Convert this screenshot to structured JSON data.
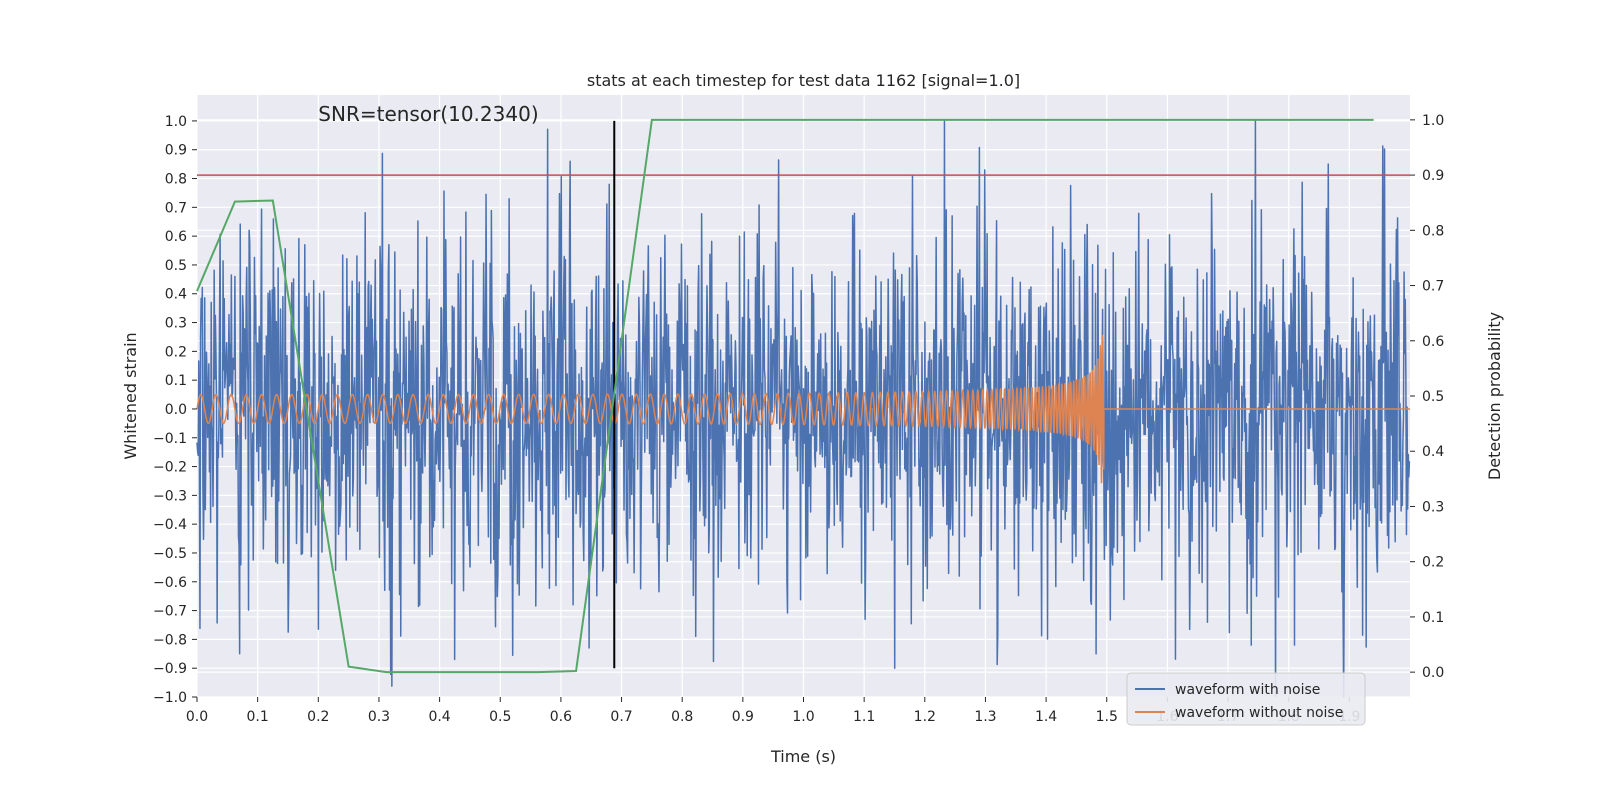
{
  "chart_data": {
    "type": "line",
    "title": "stats at each timestep for test data 1162 [signal=1.0]",
    "annotation": "SNR=tensor(10.2340)",
    "xlabel": "Time (s)",
    "ylabel": "Whitened strain",
    "y2label": "Detection probability",
    "xlim": [
      0.0,
      2.0
    ],
    "ylim": [
      -1.0,
      1.09
    ],
    "y2lim": [
      -0.045,
      1.045
    ],
    "x_ticks": [
      0.0,
      0.1,
      0.2,
      0.3,
      0.4,
      0.5,
      0.6,
      0.7,
      0.8,
      0.9,
      1.0,
      1.1,
      1.2,
      1.3,
      1.4,
      1.5,
      1.6,
      1.7,
      1.8,
      1.9
    ],
    "x_tick_labels": [
      "0.0",
      "0.1",
      "0.2",
      "0.3",
      "0.4",
      "0.5",
      "0.6",
      "0.7",
      "0.8",
      "0.9",
      "1.0",
      "1.1",
      "1.2",
      "1.3",
      "1.4",
      "1.5",
      "1.6",
      "1.7",
      "1.8",
      "1.9"
    ],
    "y_ticks": [
      -1.0,
      -0.9,
      -0.8,
      -0.7,
      -0.6,
      -0.5,
      -0.4,
      -0.3,
      -0.2,
      -0.1,
      0.0,
      0.1,
      0.2,
      0.3,
      0.4,
      0.5,
      0.6,
      0.7,
      0.8,
      0.9,
      1.0
    ],
    "y_tick_labels": [
      "−1.0",
      "−0.9",
      "−0.8",
      "−0.7",
      "−0.6",
      "−0.5",
      "−0.4",
      "−0.3",
      "−0.2",
      "−0.1",
      "0.0",
      "0.1",
      "0.2",
      "0.3",
      "0.4",
      "0.5",
      "0.6",
      "0.7",
      "0.8",
      "0.9",
      "1.0"
    ],
    "y2_ticks": [
      0.0,
      0.1,
      0.2,
      0.3,
      0.4,
      0.5,
      0.6,
      0.7,
      0.8,
      0.9,
      1.0
    ],
    "y2_tick_labels": [
      "0.0",
      "0.1",
      "0.2",
      "0.3",
      "0.4",
      "0.5",
      "0.6",
      "0.7",
      "0.8",
      "0.9",
      "1.0"
    ],
    "threshold": {
      "value": 0.9,
      "axis": "y2",
      "color": "#c44e52"
    },
    "merger_marker": {
      "x": 0.688,
      "y_range": [
        -0.9,
        1.0
      ],
      "color": "#000000"
    },
    "series": [
      {
        "name": "waveform with noise",
        "color": "#4c72b0",
        "kind": "noise",
        "axis": "y",
        "duration": 2.0,
        "n_samples": 2048,
        "std": 0.3,
        "features": [
          {
            "x": 0.07,
            "y": -0.85
          },
          {
            "x": 0.615,
            "y": 0.86
          },
          {
            "x": 0.62,
            "y": -0.68
          },
          {
            "x": 1.15,
            "y": -0.9
          },
          {
            "x": 1.232,
            "y": 1.0
          },
          {
            "x": 1.865,
            "y": 0.85
          },
          {
            "x": 1.81,
            "y": -0.82
          },
          {
            "x": 0.31,
            "y": -0.63
          },
          {
            "x": 0.515,
            "y": 0.73
          },
          {
            "x": 1.18,
            "y": 0.81
          },
          {
            "x": 1.32,
            "y": -0.78
          }
        ]
      },
      {
        "name": "waveform without noise",
        "color": "#dd8452",
        "kind": "chirp",
        "axis": "y",
        "duration": 2.0,
        "t_merge": 1.495,
        "amp_start": 0.05,
        "amp_peak": 0.26,
        "freq_start": 40,
        "freq_end": 250
      }
    ],
    "probability": {
      "name": "Detection probability",
      "color": "#55a868",
      "axis": "y2",
      "x": [
        0.0,
        0.0625,
        0.125,
        0.1875,
        0.25,
        0.3125,
        0.375,
        0.4375,
        0.5,
        0.5625,
        0.625,
        0.6875,
        0.75,
        0.8125,
        0.875,
        0.9375,
        1.0,
        1.0625,
        1.125,
        1.1875,
        1.25,
        1.3125,
        1.375,
        1.4375,
        1.5,
        1.5625,
        1.625,
        1.6875,
        1.75,
        1.8125,
        1.875,
        1.94
      ],
      "y": [
        0.69,
        0.852,
        0.854,
        0.43,
        0.01,
        0.0,
        0.0,
        0.0,
        0.0,
        0.0,
        0.002,
        0.5,
        1.0,
        1.0,
        1.0,
        1.0,
        1.0,
        1.0,
        1.0,
        1.0,
        1.0,
        1.0,
        1.0,
        1.0,
        1.0,
        1.0,
        1.0,
        1.0,
        1.0,
        1.0,
        1.0,
        1.0
      ]
    },
    "legend": {
      "placement": "lower-right",
      "entries": [
        {
          "label": "waveform with noise",
          "color": "#4c72b0"
        },
        {
          "label": "waveform without noise",
          "color": "#dd8452"
        }
      ]
    },
    "grid": true
  },
  "colors": {
    "plot_background": "#eaeaf2",
    "grid": "#ffffff",
    "text": "#262626"
  }
}
